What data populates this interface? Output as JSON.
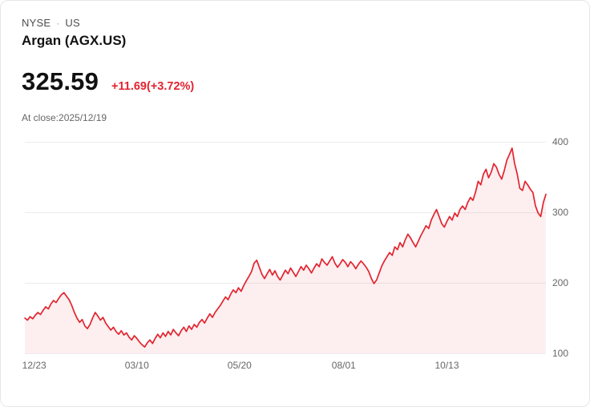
{
  "header": {
    "exchange": "NYSE",
    "separator": "·",
    "region": "US",
    "title": "Argan (AGX.US)",
    "price": "325.59",
    "change": "+11.69(+3.72%)",
    "as_of": "At close:2025/12/19"
  },
  "colors": {
    "accent_red": "#e2242f",
    "area_fill": "rgba(226,36,47,0.08)",
    "gridline": "#ececec",
    "axis_text": "#666666"
  },
  "chart_data": {
    "type": "area",
    "title": "Argan (AGX.US) 1-year price",
    "ylim": [
      100,
      400
    ],
    "y_ticks": [
      400,
      300,
      200,
      100
    ],
    "x_ticks": [
      {
        "label": "12/23",
        "pos": 0.018
      },
      {
        "label": "03/10",
        "pos": 0.215
      },
      {
        "label": "05/20",
        "pos": 0.412
      },
      {
        "label": "08/01",
        "pos": 0.612
      },
      {
        "label": "10/13",
        "pos": 0.81
      }
    ],
    "values": [
      150,
      147,
      152,
      149,
      154,
      158,
      155,
      161,
      166,
      163,
      170,
      175,
      172,
      178,
      183,
      186,
      181,
      176,
      168,
      158,
      150,
      144,
      148,
      139,
      135,
      141,
      150,
      158,
      153,
      147,
      151,
      143,
      138,
      133,
      137,
      131,
      127,
      132,
      126,
      129,
      123,
      119,
      125,
      121,
      116,
      112,
      109,
      115,
      119,
      114,
      121,
      127,
      122,
      129,
      124,
      131,
      126,
      134,
      129,
      125,
      132,
      137,
      131,
      139,
      134,
      141,
      137,
      144,
      148,
      143,
      150,
      156,
      151,
      158,
      163,
      168,
      174,
      180,
      176,
      184,
      190,
      186,
      193,
      188,
      196,
      203,
      209,
      216,
      228,
      232,
      222,
      212,
      206,
      213,
      219,
      211,
      217,
      209,
      204,
      211,
      218,
      213,
      221,
      215,
      209,
      216,
      223,
      218,
      225,
      220,
      214,
      221,
      227,
      223,
      234,
      229,
      225,
      231,
      237,
      228,
      222,
      227,
      233,
      229,
      223,
      230,
      226,
      220,
      226,
      231,
      227,
      222,
      216,
      206,
      199,
      204,
      214,
      224,
      231,
      237,
      243,
      239,
      251,
      247,
      257,
      251,
      261,
      269,
      264,
      257,
      251,
      259,
      267,
      274,
      281,
      277,
      289,
      297,
      304,
      294,
      284,
      279,
      287,
      294,
      289,
      299,
      294,
      304,
      309,
      304,
      314,
      321,
      317,
      329,
      344,
      339,
      354,
      361,
      349,
      357,
      369,
      364,
      354,
      347,
      359,
      374,
      382,
      391,
      369,
      354,
      334,
      331,
      344,
      339,
      333,
      328,
      309,
      299,
      294,
      314,
      325.59
    ]
  }
}
